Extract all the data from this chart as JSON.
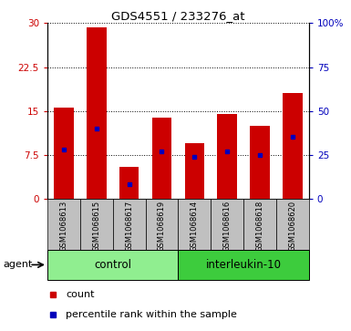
{
  "title": "GDS4551 / 233276_at",
  "samples": [
    "GSM1068613",
    "GSM1068615",
    "GSM1068617",
    "GSM1068619",
    "GSM1068614",
    "GSM1068616",
    "GSM1068618",
    "GSM1068620"
  ],
  "counts": [
    15.5,
    29.3,
    5.5,
    13.8,
    9.5,
    14.5,
    12.5,
    18.0
  ],
  "percentile_ranks": [
    28,
    40,
    8,
    27,
    24,
    27,
    25,
    35
  ],
  "group_control_color": "#90EE90",
  "group_il10_color": "#3DCC3D",
  "ylim_left": [
    0,
    30
  ],
  "ylim_right": [
    0,
    100
  ],
  "yticks_left": [
    0,
    7.5,
    15,
    22.5,
    30
  ],
  "yticks_right": [
    0,
    25,
    50,
    75,
    100
  ],
  "yticklabels_left": [
    "0",
    "7.5",
    "15",
    "22.5",
    "30"
  ],
  "yticklabels_right": [
    "0",
    "25",
    "50",
    "75",
    "100%"
  ],
  "bar_color": "#CC0000",
  "percentile_color": "#0000BB",
  "bar_width": 0.6,
  "tick_area_color": "#C0C0C0",
  "agent_label": "agent",
  "legend_count": "count",
  "legend_percentile": "percentile rank within the sample",
  "control_label": "control",
  "il10_label": "interleukin-10"
}
